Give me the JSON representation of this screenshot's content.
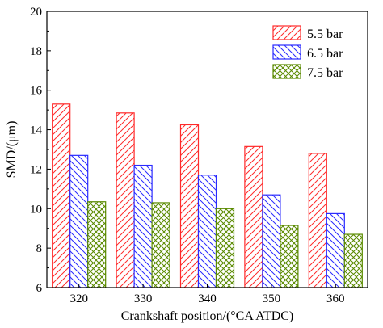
{
  "chart_data": {
    "type": "bar",
    "categories": [
      "320",
      "330",
      "340",
      "350",
      "360"
    ],
    "series": [
      {
        "name": "5.5 bar",
        "values": [
          15.3,
          14.85,
          14.25,
          13.15,
          12.8
        ],
        "color": "#ff2a2a",
        "pattern": "diagonal-up"
      },
      {
        "name": "6.5 bar",
        "values": [
          12.7,
          12.2,
          11.7,
          10.7,
          9.75
        ],
        "color": "#2a2aff",
        "pattern": "diagonal-down"
      },
      {
        "name": "7.5 bar",
        "values": [
          10.35,
          10.3,
          10.0,
          9.15,
          8.7
        ],
        "color": "#5a8a00",
        "pattern": "crosshatch"
      }
    ],
    "xlabel": "Crankshaft position/(°CA ATDC)",
    "ylabel": "SMD/(μm)",
    "ylim": [
      6,
      20
    ],
    "yticks": [
      "6",
      "8",
      "10",
      "12",
      "14",
      "16",
      "18",
      "20"
    ],
    "grid": false,
    "legend_position": "top-right"
  }
}
